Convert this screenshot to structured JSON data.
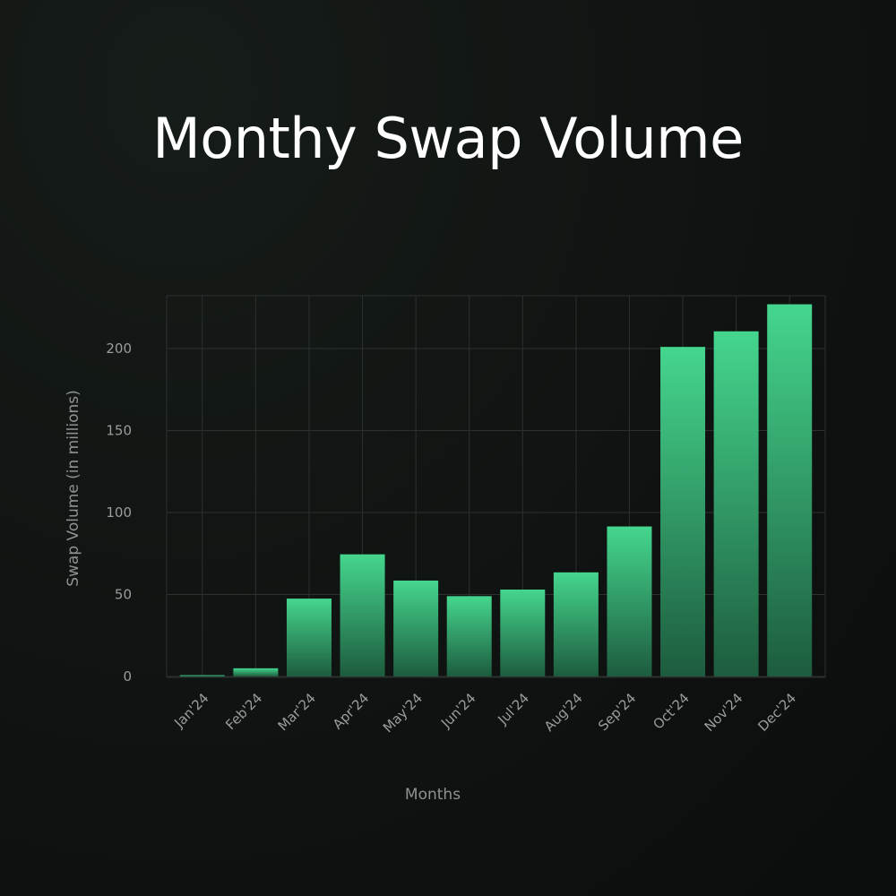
{
  "chart_data": {
    "type": "bar",
    "title": "Monthy Swap Volume",
    "xlabel": "Months",
    "ylabel": "Swap Volume (in millions)",
    "categories": [
      "Jan'24",
      "Feb'24",
      "Mar'24",
      "Apr'24",
      "May'24",
      "Jun'24",
      "Jul'24",
      "Aug'24",
      "Sep'24",
      "Oct'24",
      "Nov'24",
      "Dec'24"
    ],
    "values": [
      0.8,
      5,
      47.5,
      74.5,
      58.5,
      49,
      53,
      63.5,
      91.5,
      201,
      210.5,
      227
    ],
    "ylim": [
      0,
      232
    ],
    "yticks": [
      0,
      50,
      100,
      150,
      200
    ],
    "grid": true,
    "legend": "none",
    "colors": {
      "bar_top": "#45d68e",
      "bar_bottom": "#1d5c3e",
      "grid": "#2c302e",
      "text": "#9a9d9b"
    }
  }
}
